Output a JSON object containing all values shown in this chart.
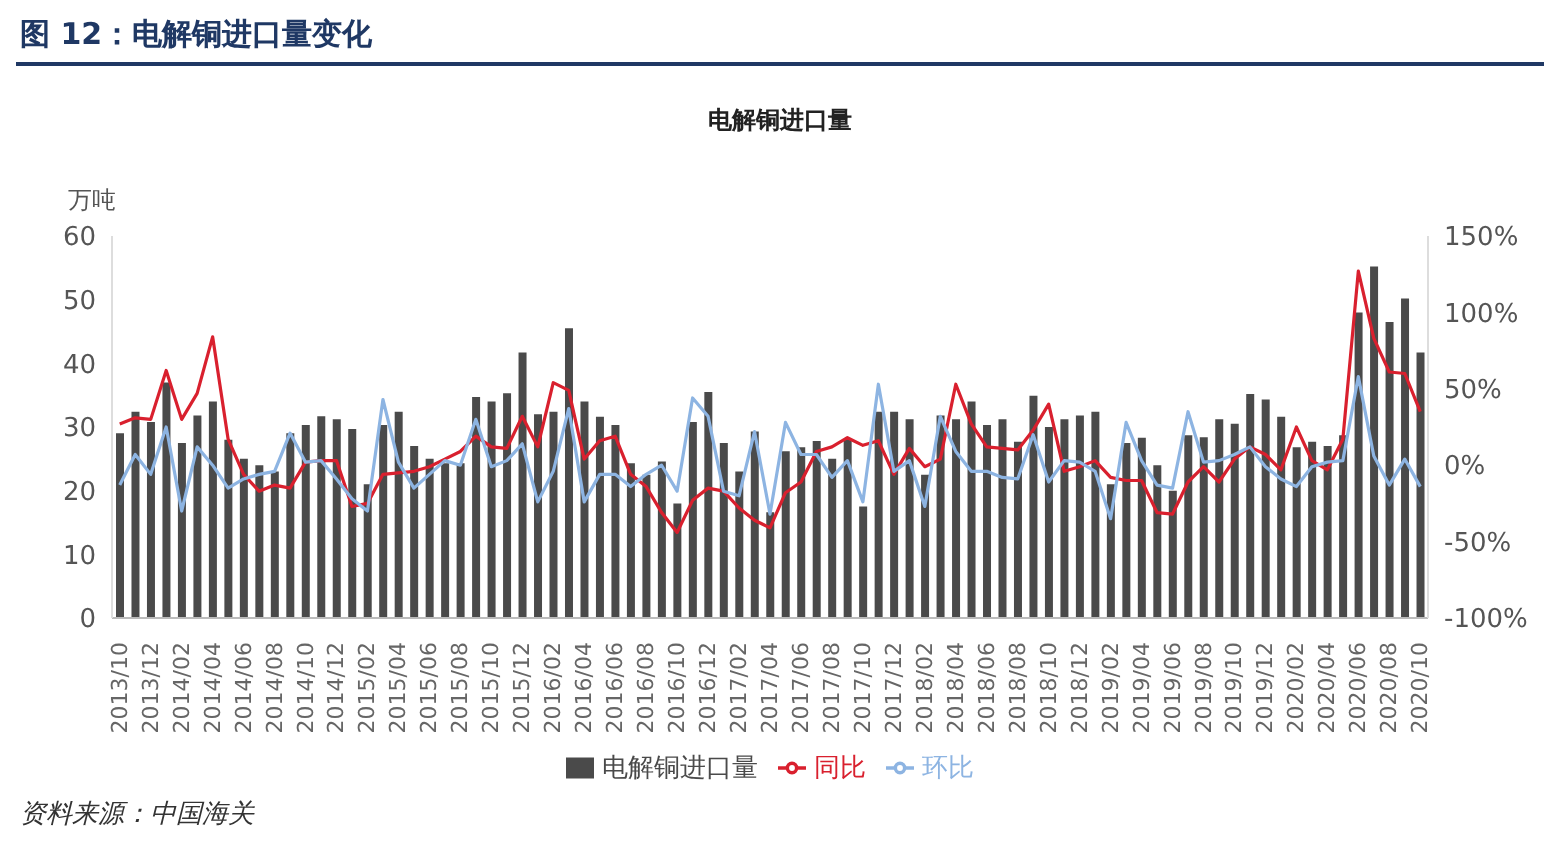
{
  "chart_data": {
    "type": "bar",
    "title": "图 12：电解铜进口量变化",
    "subtitle": "电解铜进口量",
    "ylabel": "万吨",
    "categories": [
      "2013/10",
      null,
      "2013/12",
      null,
      "2014/02",
      null,
      "2014/04",
      null,
      "2014/06",
      null,
      "2014/08",
      null,
      "2014/10",
      null,
      "2014/12",
      null,
      "2015/02",
      null,
      "2015/04",
      null,
      "2015/06",
      null,
      "2015/08",
      null,
      "2015/10",
      null,
      "2015/12",
      null,
      "2016/02",
      null,
      "2016/04",
      null,
      "2016/06",
      null,
      "2016/08",
      null,
      "2016/10",
      null,
      "2016/12",
      null,
      "2017/02",
      null,
      "2017/04",
      null,
      "2017/06",
      null,
      "2017/08",
      null,
      "2017/10",
      null,
      "2017/12",
      null,
      "2018/02",
      null,
      "2018/04",
      null,
      "2018/06",
      null,
      "2018/08",
      null,
      "2018/10",
      null,
      "2018/12",
      null,
      "2019/02",
      null,
      "2019/04",
      null,
      "2019/06",
      null,
      "2019/08",
      null,
      "2019/10",
      null,
      "2019/12",
      null,
      "2020/02",
      null,
      "2020/04",
      null,
      "2020/06",
      null,
      "2020/08",
      null,
      "2020/10"
    ],
    "series": [
      {
        "name": "电解铜进口量",
        "color": "#4a4a4a",
        "values": [
          29,
          32.4,
          30.8,
          37,
          27.5,
          31.8,
          34,
          28,
          25,
          24,
          23,
          29,
          30.3,
          31.7,
          31.2,
          29.7,
          21,
          30.3,
          32.4,
          27,
          25,
          24.3,
          24.3,
          34.7,
          34,
          35.3,
          41.7,
          32,
          32.4,
          45.5,
          34,
          31.6,
          30.3,
          24.3,
          22.5,
          24.6,
          18,
          30.8,
          35.5,
          27.5,
          23,
          29.3,
          16.6,
          26.2,
          26.8,
          27.8,
          25,
          28,
          17.5,
          32.4,
          32.4,
          31.2,
          22.5,
          31.8,
          31.2,
          34,
          30.3,
          31.2,
          27.7,
          34.9,
          30,
          31.2,
          31.8,
          32.4,
          21,
          27.5,
          28.3,
          24,
          20,
          28.7,
          28.4,
          31.2,
          30.5,
          35.2,
          34.3,
          31.6,
          26.8,
          27.7,
          27,
          28.7,
          48,
          55.2,
          46.5,
          50.2,
          41.7
        ]
      },
      {
        "name": "同比",
        "type": "line",
        "axis": "y2",
        "color": "#d9202e",
        "values": [
          27,
          31,
          30,
          62,
          30,
          47,
          84,
          17,
          -6,
          -17,
          -13,
          -15,
          2,
          3,
          3,
          -27,
          -25,
          -6,
          -5,
          -4,
          -1,
          4,
          9,
          19,
          12,
          11,
          32,
          12,
          54,
          49,
          4,
          16,
          19,
          -6,
          -14,
          -31,
          -44,
          -23,
          -15,
          -17,
          -28,
          -36,
          -41,
          -18,
          -11,
          9,
          12,
          18,
          13,
          16,
          -6,
          11,
          -1,
          4,
          53,
          27,
          12,
          11,
          10,
          23,
          40,
          -4,
          -1,
          3,
          -8,
          -10,
          -10,
          -31,
          -32,
          -11,
          -1,
          -11,
          4,
          12,
          7,
          -3,
          25,
          3,
          -3,
          17,
          127,
          83,
          61,
          60,
          35
        ]
      },
      {
        "name": "环比",
        "type": "line",
        "axis": "y2",
        "color": "#8db4e2",
        "values": [
          -13,
          7,
          -6,
          25,
          -30,
          12,
          0,
          -15,
          -9,
          -6,
          -4,
          21,
          2,
          3,
          -9,
          -22,
          -30,
          43,
          2,
          -15,
          -6,
          3,
          0,
          30,
          -1,
          3,
          14,
          -24,
          -4,
          37,
          -24,
          -6,
          -6,
          -14,
          -6,
          0,
          -17,
          44,
          32,
          -17,
          -20,
          22,
          -32,
          28,
          7,
          7,
          -8,
          3,
          -24,
          53,
          -4,
          3,
          -27,
          32,
          9,
          -4,
          -4,
          -8,
          -9,
          20,
          -11,
          3,
          2,
          -4,
          -35,
          28,
          3,
          -13,
          -15,
          35,
          2,
          3,
          7,
          12,
          -1,
          -9,
          -14,
          -1,
          2,
          3,
          58,
          6,
          -13,
          4,
          -14
        ]
      }
    ],
    "ylim": [
      0,
      60
    ],
    "yticks": [
      0,
      10,
      20,
      30,
      40,
      50,
      60
    ],
    "y2lim": [
      -100,
      150
    ],
    "y2ticks": [
      {
        "value": -100,
        "label": "-100%"
      },
      {
        "value": -50,
        "label": "-50%"
      },
      {
        "value": 0,
        "label": "0%"
      },
      {
        "value": 50,
        "label": "50%"
      },
      {
        "value": 100,
        "label": "100%"
      },
      {
        "value": 150,
        "label": "150%"
      }
    ],
    "marker": "none",
    "line_style": "solid",
    "grid": false,
    "legend": "bottom",
    "annotations": [
      "资料来源：中国海关"
    ]
  }
}
